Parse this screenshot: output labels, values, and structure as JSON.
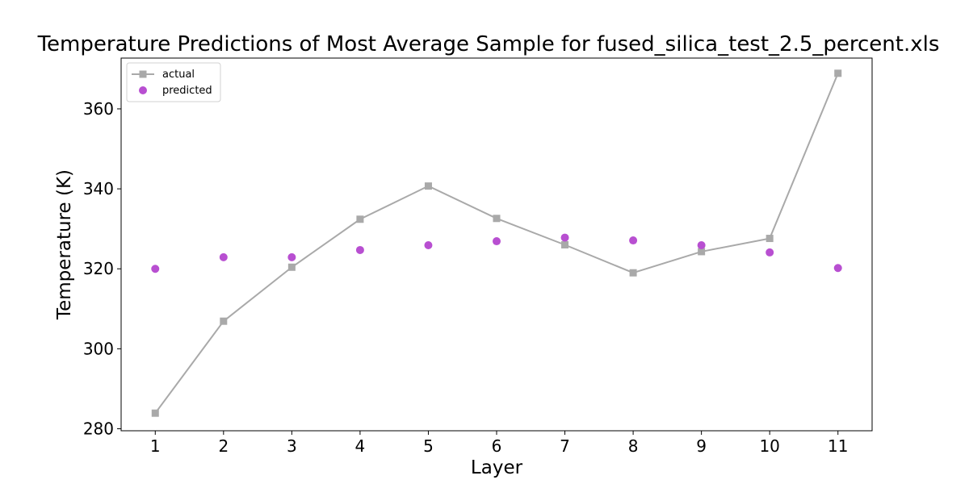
{
  "chart_data": {
    "type": "line",
    "title": "Temperature Predictions of Most Average Sample for fused_silica_test_2.5_percent.xls",
    "xlabel": "Layer",
    "ylabel": "Temperature (K)",
    "x": [
      1,
      2,
      3,
      4,
      5,
      6,
      7,
      8,
      9,
      10,
      11
    ],
    "xlim": [
      0.5,
      11.5
    ],
    "ylim": [
      279.5,
      372.7
    ],
    "yticks": [
      280,
      300,
      320,
      340,
      360
    ],
    "grid": false,
    "legend_position": "top-left",
    "series": [
      {
        "name": "actual",
        "style": "line-with-square-markers",
        "color": "#a9a9a9",
        "values": [
          283.9,
          306.9,
          320.4,
          332.4,
          340.7,
          332.6,
          326.0,
          319.0,
          324.3,
          327.6,
          368.9
        ]
      },
      {
        "name": "predicted",
        "style": "scatter-circle",
        "color": "#b84fd1",
        "values": [
          320.0,
          322.9,
          322.9,
          324.7,
          325.9,
          326.9,
          327.8,
          327.1,
          325.9,
          324.1,
          320.2
        ]
      }
    ]
  }
}
